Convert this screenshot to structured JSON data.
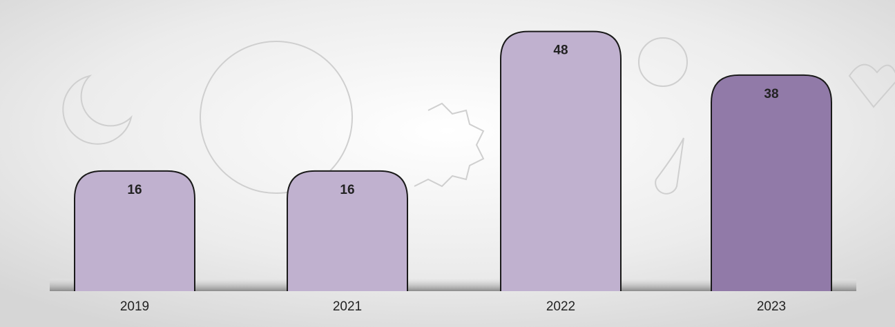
{
  "chart_data": {
    "type": "bar",
    "categories": [
      "2019",
      "2021",
      "2022",
      "2023"
    ],
    "values": [
      16,
      16,
      48,
      38
    ],
    "colors": [
      "#c0b1cf",
      "#c0b1cf",
      "#c0b1cf",
      "#917aa8"
    ]
  }
}
